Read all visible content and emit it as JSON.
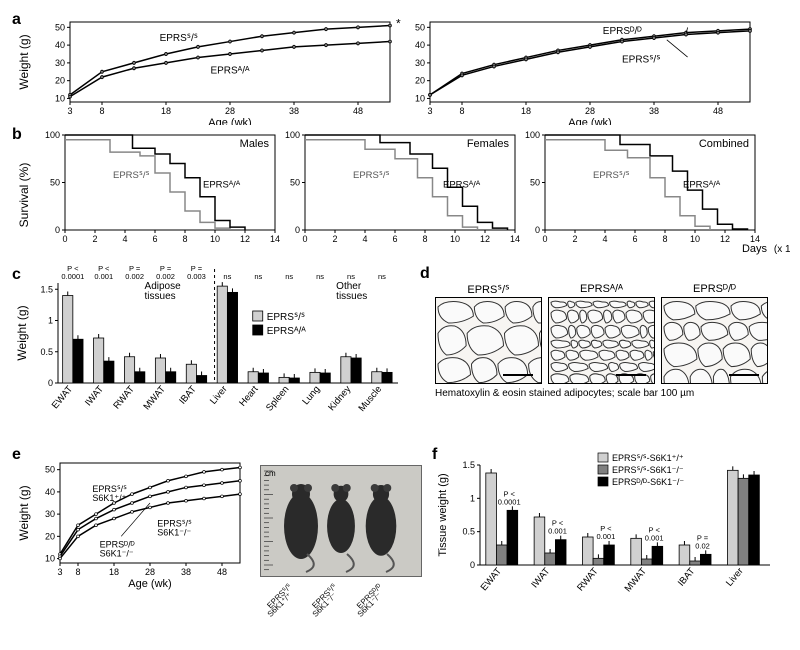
{
  "panel_a": {
    "label": "a",
    "ylabel": "Weight (g)",
    "xlabel": "Age (wk)",
    "left": {
      "xlim": [
        3,
        53
      ],
      "ylim": [
        8,
        53
      ],
      "xticks": [
        3,
        8,
        18,
        28,
        38,
        48
      ],
      "yticks": [
        10,
        20,
        30,
        40,
        50
      ],
      "series_upper_label": "EPRSᔆ/ᔆ",
      "series_lower_label": "EPRSᴬ/ᴬ",
      "upper": [
        [
          3,
          12
        ],
        [
          8,
          25
        ],
        [
          13,
          30
        ],
        [
          18,
          35
        ],
        [
          23,
          39
        ],
        [
          28,
          42
        ],
        [
          33,
          45
        ],
        [
          38,
          47
        ],
        [
          43,
          49
        ],
        [
          48,
          50
        ],
        [
          53,
          51
        ]
      ],
      "lower": [
        [
          3,
          11
        ],
        [
          8,
          22
        ],
        [
          13,
          27
        ],
        [
          18,
          30
        ],
        [
          23,
          33
        ],
        [
          28,
          35
        ],
        [
          33,
          37
        ],
        [
          38,
          39
        ],
        [
          43,
          40
        ],
        [
          48,
          41
        ],
        [
          53,
          42
        ]
      ],
      "sig_marker": "*"
    },
    "right": {
      "xlim": [
        3,
        53
      ],
      "ylim": [
        8,
        53
      ],
      "xticks": [
        3,
        8,
        18,
        28,
        38,
        48
      ],
      "yticks": [
        10,
        20,
        30,
        40,
        50
      ],
      "series_upper_label": "EPRSᴰ/ᴰ",
      "series_lower_label": "EPRSᔆ/ᔆ",
      "upper": [
        [
          3,
          12
        ],
        [
          8,
          24
        ],
        [
          13,
          29
        ],
        [
          18,
          33
        ],
        [
          23,
          37
        ],
        [
          28,
          40
        ],
        [
          33,
          43
        ],
        [
          38,
          45
        ],
        [
          43,
          47
        ],
        [
          48,
          48
        ],
        [
          53,
          49
        ]
      ],
      "lower": [
        [
          3,
          12
        ],
        [
          8,
          23
        ],
        [
          13,
          28
        ],
        [
          18,
          32
        ],
        [
          23,
          36
        ],
        [
          28,
          39
        ],
        [
          33,
          42
        ],
        [
          38,
          44
        ],
        [
          43,
          46
        ],
        [
          48,
          47
        ],
        [
          53,
          48
        ]
      ]
    },
    "font_axis": 10,
    "font_label": 12
  },
  "panel_b": {
    "label": "b",
    "ylabel": "Survival (%)",
    "xlabel": "Days",
    "xlabel_suffix": "(x 100)",
    "xlim": [
      0,
      14
    ],
    "ylim": [
      0,
      100
    ],
    "xticks": [
      0,
      2,
      4,
      6,
      8,
      10,
      12,
      14
    ],
    "yticks": [
      0,
      50,
      100
    ],
    "plots": [
      {
        "title": "Males",
        "aa": [
          [
            0,
            100
          ],
          [
            4.5,
            86
          ],
          [
            6,
            80
          ],
          [
            7,
            70
          ],
          [
            8,
            55
          ],
          [
            9,
            35
          ],
          [
            10,
            10
          ],
          [
            11,
            3
          ],
          [
            12,
            0
          ]
        ],
        "ss": [
          [
            0,
            95
          ],
          [
            3,
            82
          ],
          [
            5,
            78
          ],
          [
            6,
            60
          ],
          [
            7,
            40
          ],
          [
            8,
            20
          ],
          [
            9,
            8
          ],
          [
            10,
            2
          ],
          [
            11,
            0
          ]
        ]
      },
      {
        "title": "Females",
        "aa": [
          [
            0,
            100
          ],
          [
            5,
            92
          ],
          [
            7,
            80
          ],
          [
            8.5,
            65
          ],
          [
            9.5,
            45
          ],
          [
            10.5,
            25
          ],
          [
            11.5,
            8
          ],
          [
            12.5,
            2
          ],
          [
            13.5,
            0
          ]
        ],
        "ss": [
          [
            0,
            95
          ],
          [
            4,
            85
          ],
          [
            6,
            75
          ],
          [
            7.5,
            55
          ],
          [
            8.5,
            35
          ],
          [
            9.5,
            15
          ],
          [
            10.5,
            3
          ],
          [
            11.5,
            0
          ]
        ]
      },
      {
        "title": "Combined",
        "aa": [
          [
            0,
            100
          ],
          [
            5,
            90
          ],
          [
            7,
            78
          ],
          [
            8.5,
            62
          ],
          [
            9.5,
            42
          ],
          [
            10.5,
            22
          ],
          [
            11.5,
            6
          ],
          [
            12.5,
            1
          ],
          [
            13.5,
            0
          ]
        ],
        "ss": [
          [
            0,
            95
          ],
          [
            4,
            84
          ],
          [
            5.5,
            76
          ],
          [
            7,
            55
          ],
          [
            8,
            35
          ],
          [
            9,
            15
          ],
          [
            10,
            4
          ],
          [
            11,
            0
          ]
        ]
      }
    ],
    "label_aa": "EPRSᴬ/ᴬ",
    "label_ss": "EPRSᔆ/ᔆ",
    "font_axis": 10,
    "font_label": 12
  },
  "panel_c": {
    "label": "c",
    "ylabel": "Weight (g)",
    "ylim": [
      0,
      1.6
    ],
    "yticks": [
      0,
      0.5,
      1.0,
      1.5
    ],
    "group1_title": "Adipose\ntissues",
    "group2_title": "Other\ntissues",
    "categories": [
      "EWAT",
      "IWAT",
      "RWAT",
      "MWAT",
      "IBAT",
      "Liver",
      "Heart",
      "Spleen",
      "Lung",
      "Kidney",
      "Muscle"
    ],
    "ss": [
      1.4,
      0.72,
      0.42,
      0.4,
      0.3,
      1.55,
      0.18,
      0.09,
      0.17,
      0.42,
      0.18
    ],
    "aa": [
      0.7,
      0.35,
      0.18,
      0.18,
      0.12,
      1.45,
      0.16,
      0.08,
      0.16,
      0.4,
      0.17
    ],
    "pvals": [
      "P <\n0.0001",
      "P <\n0.001",
      "P =\n0.002",
      "P =\n0.002",
      "P =\n0.003",
      "ns",
      "ns",
      "ns",
      "ns",
      "ns",
      "ns"
    ],
    "legend": {
      "ss": "EPRSᔆ/ᔆ",
      "aa": "EPRSᴬ/ᴬ"
    },
    "divider_after": 5,
    "font_axis": 10,
    "font_label": 12
  },
  "panel_d": {
    "label": "d",
    "titles": [
      "EPRSᔆ/ᔆ",
      "EPRSᴬ/ᴬ",
      "EPRSᴰ/ᴰ"
    ],
    "caption": "Hematoxylin & eosin stained adipocytes; scale bar 100 µm"
  },
  "panel_e": {
    "label": "e",
    "ylabel": "Weight (g)",
    "xlabel": "Age (wk)",
    "xlim": [
      3,
      53
    ],
    "ylim": [
      8,
      53
    ],
    "xticks": [
      3,
      8,
      18,
      28,
      38,
      48
    ],
    "yticks": [
      10,
      20,
      30,
      40,
      50
    ],
    "curves": {
      "top": {
        "label": "EPRSᔆ/ᔆ\nS6K1⁺/⁺",
        "pts": [
          [
            3,
            12
          ],
          [
            8,
            25
          ],
          [
            13,
            30
          ],
          [
            18,
            35
          ],
          [
            23,
            39
          ],
          [
            28,
            42
          ],
          [
            33,
            45
          ],
          [
            38,
            47
          ],
          [
            43,
            49
          ],
          [
            48,
            50
          ],
          [
            53,
            51
          ]
        ]
      },
      "mid": {
        "label": "EPRSᴰ/ᴰ\nS6K1⁻/⁻",
        "pts": [
          [
            3,
            11
          ],
          [
            8,
            23
          ],
          [
            13,
            28
          ],
          [
            18,
            32
          ],
          [
            23,
            35
          ],
          [
            28,
            38
          ],
          [
            33,
            40
          ],
          [
            38,
            42
          ],
          [
            43,
            43
          ],
          [
            48,
            44
          ],
          [
            53,
            45
          ]
        ]
      },
      "bot": {
        "label": "EPRSᔆ/ᔆ\nS6K1⁻/⁻",
        "pts": [
          [
            3,
            10
          ],
          [
            8,
            20
          ],
          [
            13,
            25
          ],
          [
            18,
            28
          ],
          [
            23,
            31
          ],
          [
            28,
            33
          ],
          [
            33,
            35
          ],
          [
            38,
            36
          ],
          [
            43,
            37
          ],
          [
            48,
            38
          ],
          [
            53,
            39
          ]
        ]
      }
    },
    "photo_labels": [
      "EPRSᔆ/ᔆ\nS6K1⁺/⁺",
      "EPRSᔆ/ᔆ\nS6K1⁻/⁻",
      "EPRSᴰ/ᴰ\nS6K1⁻/⁻"
    ],
    "photo_unit": "cm"
  },
  "panel_f": {
    "label": "f",
    "ylabel": "Tissue weight (g)",
    "ylim": [
      0,
      1.5
    ],
    "yticks": [
      0,
      0.5,
      1.0,
      1.5
    ],
    "categories": [
      "EWAT",
      "IWAT",
      "RWAT",
      "MWAT",
      "IBAT",
      "Liver"
    ],
    "series": {
      "a": {
        "label": "EPRSᔆ/ᔆ-S6K1⁺/⁺",
        "color": "#d0d0d0",
        "vals": [
          1.38,
          0.72,
          0.42,
          0.4,
          0.3,
          1.42
        ]
      },
      "b": {
        "label": "EPRSᔆ/ᔆ-S6K1⁻/⁻",
        "color": "#808080",
        "vals": [
          0.3,
          0.18,
          0.1,
          0.09,
          0.06,
          1.3
        ]
      },
      "c": {
        "label": "EPRSᴰ/ᴰ-S6K1⁻/⁻",
        "color": "#000000",
        "vals": [
          0.82,
          0.38,
          0.3,
          0.28,
          0.16,
          1.35
        ]
      }
    },
    "pvals": [
      "P <\n0.0001",
      "P <\n0.001",
      "P <\n0.001",
      "P <\n0.001",
      "P =\n0.02",
      ""
    ]
  },
  "colors": {
    "black": "#000000",
    "gray": "#888888",
    "lightbar": "#d0d0d0",
    "midbar": "#808080",
    "darkbar": "#000000",
    "bg": "#ffffff"
  },
  "fonts": {
    "axis": 10,
    "label": 12,
    "panel": 16,
    "small": 8
  }
}
